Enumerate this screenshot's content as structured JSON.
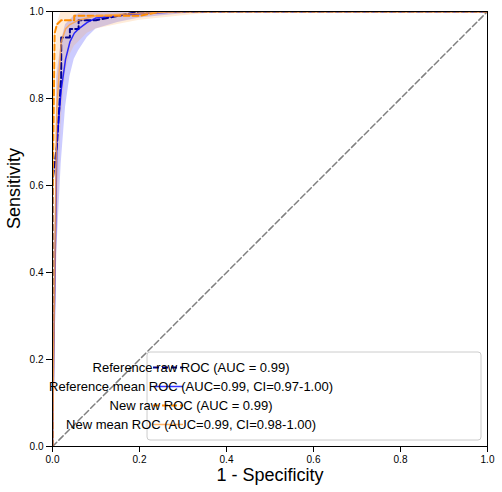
{
  "chart_data": {
    "type": "line",
    "x_label": "1 - Specificity",
    "y_label": "Sensitivity",
    "xlim": [
      0,
      1
    ],
    "ylim": [
      0,
      1
    ],
    "xticks": [
      {
        "value": 0,
        "label": "0.0"
      },
      {
        "value": 0.2,
        "label": "0.2"
      },
      {
        "value": 0.4,
        "label": "0.4"
      },
      {
        "value": 0.6,
        "label": "0.6"
      },
      {
        "value": 0.8,
        "label": "0.8"
      },
      {
        "value": 1,
        "label": "1.0"
      }
    ],
    "yticks": [
      {
        "value": 0,
        "label": "0.0"
      },
      {
        "value": 0.2,
        "label": "0.2"
      },
      {
        "value": 0.4,
        "label": "0.4"
      },
      {
        "value": 0.6,
        "label": "0.6"
      },
      {
        "value": 0.8,
        "label": "0.8"
      },
      {
        "value": 1,
        "label": "1.0"
      }
    ],
    "grid": false,
    "legend": "lower right",
    "diagonal": {
      "x": [
        0,
        1
      ],
      "values": [
        0,
        1
      ],
      "color": "gray",
      "line_style": "dashed"
    },
    "series": [
      {
        "name": "Reference raw ROC (AUC = 0.99)",
        "color": "#00008b",
        "line_style": "dashed",
        "x": [
          0,
          0,
          0.01,
          0.02,
          0.02,
          0.04,
          0.04,
          0.06,
          0.06,
          0.1,
          0.15,
          0.2,
          1
        ],
        "values": [
          0,
          0.61,
          0.69,
          0.85,
          0.94,
          0.94,
          0.96,
          0.96,
          0.98,
          0.98,
          0.99,
          1,
          1
        ]
      },
      {
        "name": "Reference mean ROC (AUC=0.99, CI=0.97-1.00)",
        "color": "#0000ff",
        "line_style": "solid",
        "x": [
          0,
          0.01,
          0.02,
          0.03,
          0.04,
          0.05,
          0.06,
          0.08,
          0.1,
          0.15,
          0.2,
          0.3,
          0.4,
          1
        ],
        "values": [
          0,
          0.7,
          0.82,
          0.89,
          0.93,
          0.95,
          0.96,
          0.975,
          0.985,
          0.99,
          0.995,
          1,
          1,
          1
        ],
        "lower": [
          0,
          0.45,
          0.65,
          0.78,
          0.85,
          0.89,
          0.91,
          0.94,
          0.96,
          0.975,
          0.985,
          0.995,
          1,
          1
        ],
        "upper": [
          0,
          0.85,
          0.93,
          0.97,
          0.98,
          0.99,
          0.995,
          1,
          1,
          1,
          1,
          1,
          1,
          1
        ]
      },
      {
        "name": "New raw ROC (AUC = 0.99)",
        "color": "#ff8c00",
        "line_style": "dashed",
        "x": [
          0,
          0,
          0.005,
          0.01,
          0.02,
          0.05,
          0.05,
          0.2,
          0.25,
          1
        ],
        "values": [
          0,
          0.55,
          0.95,
          0.97,
          0.98,
          0.98,
          0.99,
          0.99,
          1,
          1
        ]
      },
      {
        "name": "New mean ROC (AUC=0.99, CI=0.98-1.00)",
        "color": "#ffa040",
        "line_style": "solid",
        "x": [
          0,
          0.01,
          0.02,
          0.03,
          0.04,
          0.05,
          0.06,
          0.08,
          0.1,
          0.15,
          0.2,
          0.3,
          0.4,
          1
        ],
        "values": [
          0,
          0.78,
          0.93,
          0.96,
          0.97,
          0.975,
          0.98,
          0.985,
          0.99,
          0.993,
          0.996,
          1,
          1,
          1
        ],
        "lower": [
          0,
          0.45,
          0.75,
          0.86,
          0.9,
          0.92,
          0.93,
          0.95,
          0.96,
          0.97,
          0.98,
          0.99,
          1,
          1
        ],
        "upper": [
          0,
          0.97,
          1,
          1,
          1,
          1,
          1,
          1,
          1,
          1,
          1,
          1,
          1,
          1
        ]
      }
    ]
  }
}
